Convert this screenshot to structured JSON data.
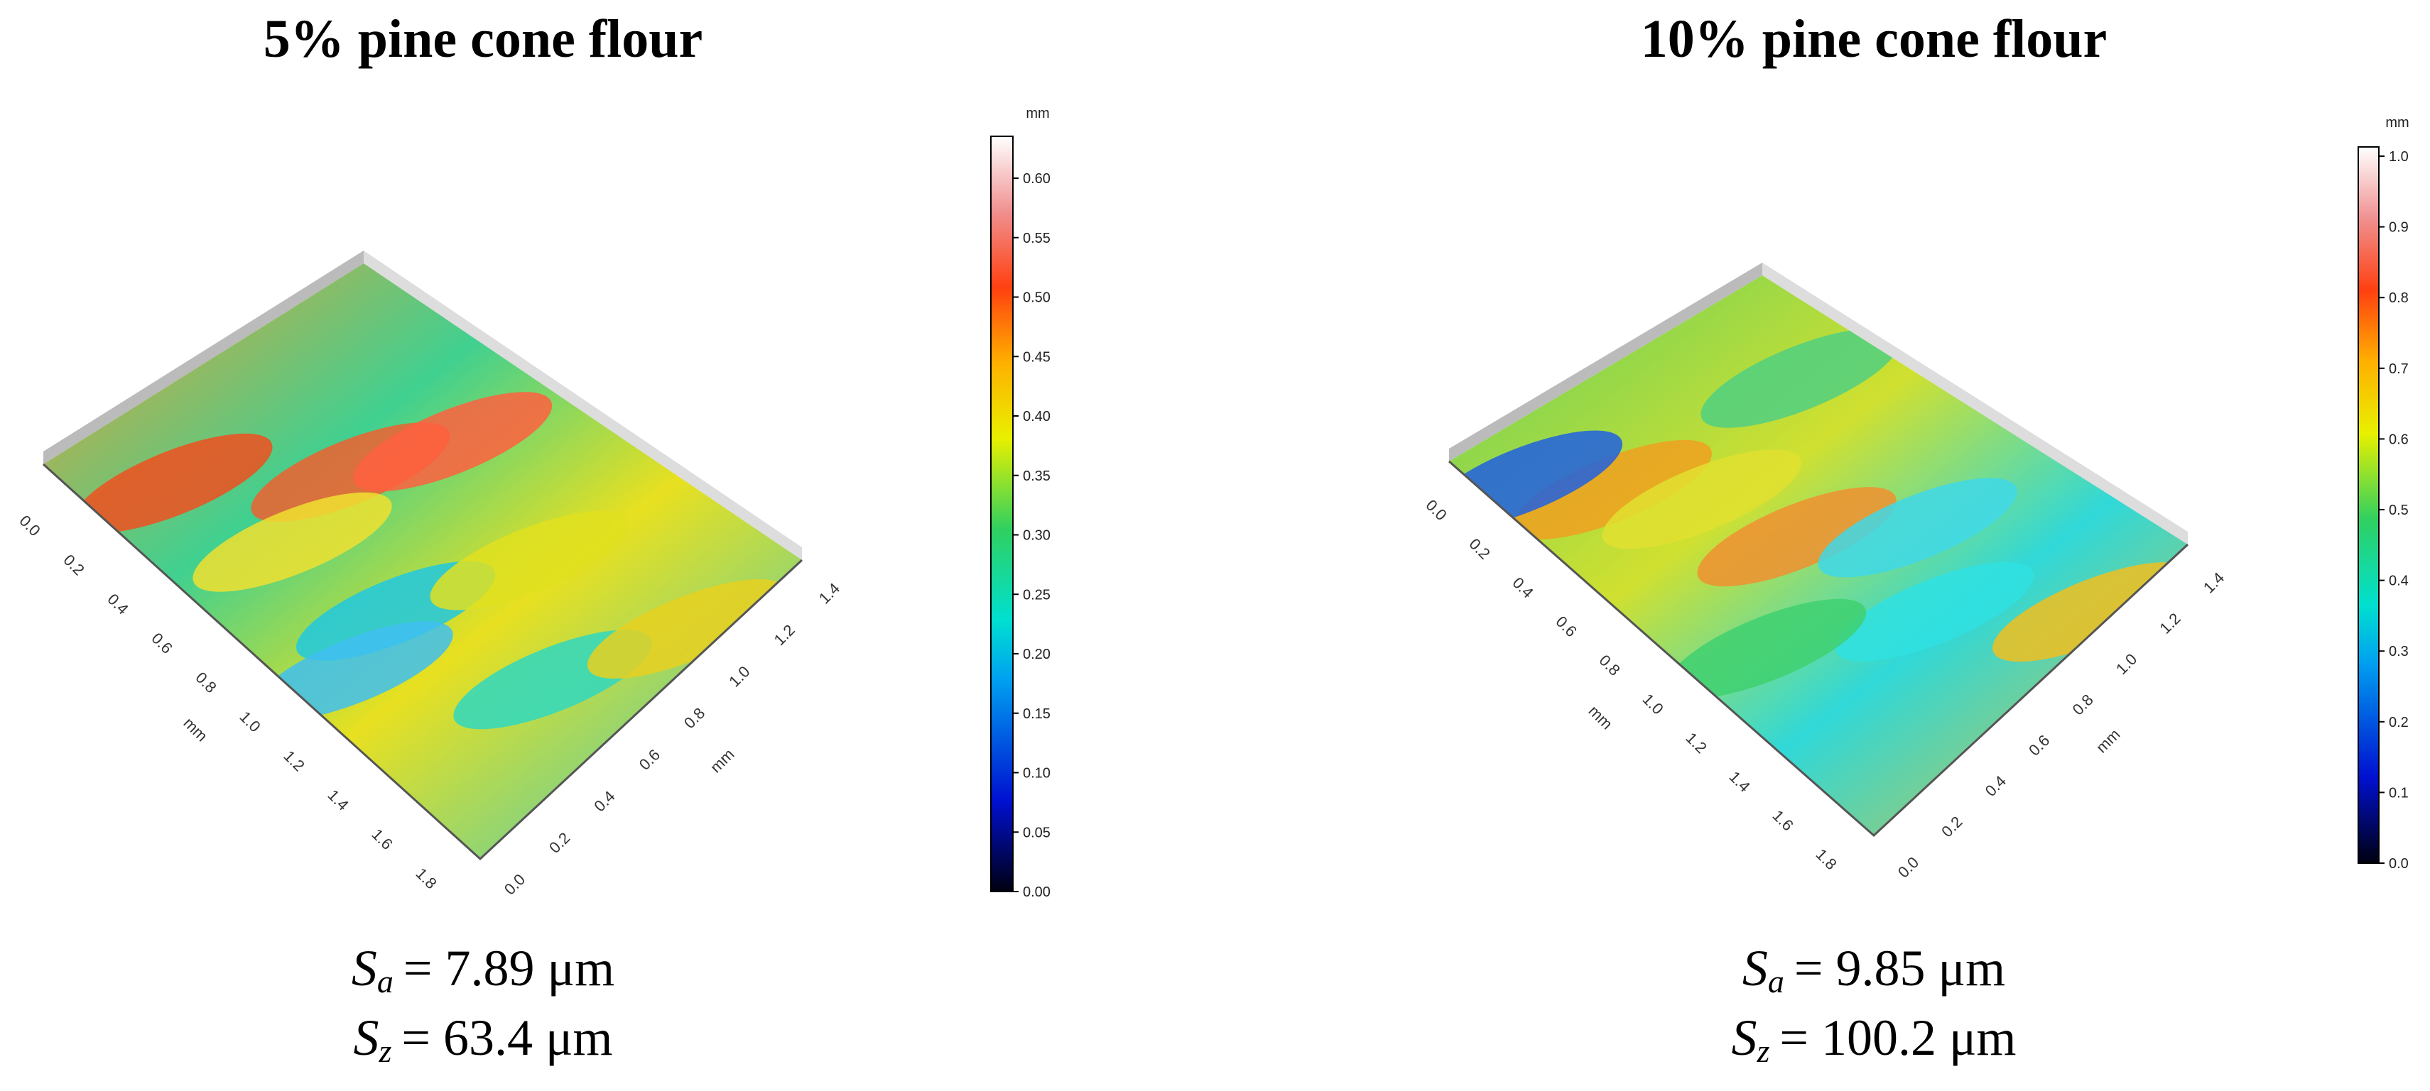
{
  "panels": [
    {
      "title": "5% pine cone flour",
      "colorbar": {
        "unit": "mm",
        "ticks": [
          "0.00",
          "0.05",
          "0.10",
          "0.15",
          "0.20",
          "0.25",
          "0.30",
          "0.35",
          "0.40",
          "0.45",
          "0.50",
          "0.55",
          "0.60"
        ]
      },
      "x_axis": {
        "label": "mm",
        "ticks": [
          "0.0",
          "0.2",
          "0.4",
          "0.6",
          "0.8",
          "1.0",
          "1.2",
          "1.4",
          "1.6",
          "1.8"
        ]
      },
      "y_axis": {
        "label": "mm",
        "ticks": [
          "0.0",
          "0.2",
          "0.4",
          "0.6",
          "0.8",
          "1.0",
          "1.2",
          "1.4"
        ]
      },
      "sa": {
        "symbol": "S",
        "subscript": "a",
        "text": "= 7.89 μm"
      },
      "sz": {
        "symbol": "S",
        "subscript": "z",
        "text": "= 63.4 μm"
      }
    },
    {
      "title": "10% pine cone flour",
      "colorbar": {
        "unit": "mm",
        "ticks": [
          "0.0",
          "0.1",
          "0.2",
          "0.3",
          "0.4",
          "0.5",
          "0.6",
          "0.7",
          "0.8",
          "0.9",
          "1.0"
        ]
      },
      "x_axis": {
        "label": "mm",
        "ticks": [
          "0.0",
          "0.2",
          "0.4",
          "0.6",
          "0.8",
          "1.0",
          "1.2",
          "1.4",
          "1.6",
          "1.8"
        ]
      },
      "y_axis": {
        "label": "mm",
        "ticks": [
          "0.0",
          "0.2",
          "0.4",
          "0.6",
          "0.8",
          "1.0",
          "1.2",
          "1.4"
        ]
      },
      "sa": {
        "symbol": "S",
        "subscript": "a",
        "text": "= 9.85 μm"
      },
      "sz": {
        "symbol": "S",
        "subscript": "z",
        "text": "= 100.2 μm"
      }
    }
  ]
}
